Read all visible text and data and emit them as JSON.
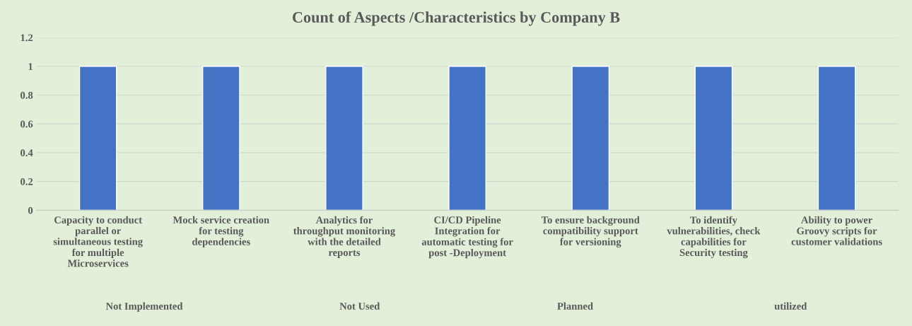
{
  "chart_data": {
    "type": "bar",
    "title": "Count of Aspects /Characteristics by Company B",
    "categories": [
      "Capacity to conduct\nparallel or\nsimultaneous testing\nfor multiple\nMicroservices",
      "Mock service creation\nfor testing\ndependencies",
      "Analytics for\nthroughput monitoring\nwith the detailed\nreports",
      "CI/CD Pipeline\nIntegration for\nautomatic testing for\npost -Deployment",
      "To ensure background\ncompatibility support\nfor versioning",
      "To identify\nvulnerabilities, check\ncapabilities for\nSecurity testing",
      "Ability to power\nGroovy scripts for\ncustomer validations"
    ],
    "values": [
      1,
      1,
      1,
      1,
      1,
      1,
      1
    ],
    "color": "#4472c4",
    "ylim": [
      0,
      1.2
    ],
    "yticks": [
      0,
      {
        "value": 0.2,
        "label": "0.2"
      },
      {
        "value": 0.4,
        "label": "0.4"
      },
      {
        "value": 0.6,
        "label": "0.6"
      },
      {
        "value": 0.8,
        "label": "0.8"
      },
      1,
      {
        "value": 1.2,
        "label": "1.2"
      }
    ],
    "grid": "y",
    "annotations": [
      "Not Implemented",
      "Not Used",
      "Planned",
      "utilized"
    ]
  }
}
